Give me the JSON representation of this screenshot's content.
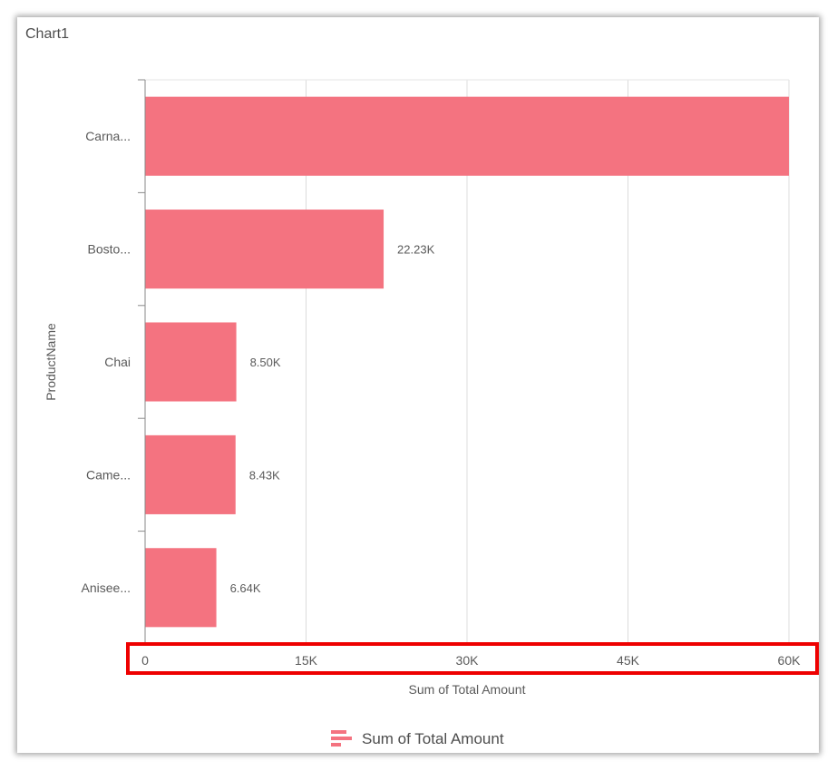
{
  "chart_data": {
    "type": "bar",
    "orientation": "horizontal",
    "title": "Chart1",
    "categories": [
      "Carna...",
      "Bosto...",
      "Chai",
      "Came...",
      "Anisee..."
    ],
    "series": [
      {
        "name": "Sum of Total Amount",
        "values": [
          60000,
          22230,
          8500,
          8430,
          6640
        ],
        "data_labels": [
          "",
          "22.23K",
          "8.50K",
          "8.43K",
          "6.64K"
        ],
        "color": "#f47380"
      }
    ],
    "xlabel": "Sum of Total Amount",
    "ylabel": "ProductName",
    "xlim": [
      0,
      60000
    ],
    "x_ticks": [
      "0",
      "15K",
      "30K",
      "45K",
      "60K"
    ],
    "x_tick_values": [
      0,
      15000,
      30000,
      45000,
      60000
    ],
    "grid": true,
    "legend": "bottom",
    "highlight": {
      "target": "x-axis tick labels",
      "color": "#ee0000"
    }
  }
}
